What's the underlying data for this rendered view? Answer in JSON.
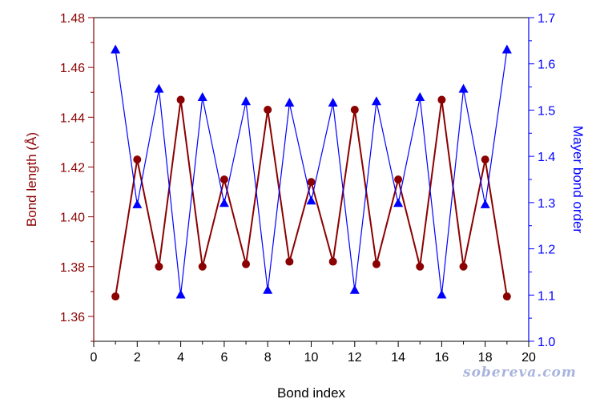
{
  "chart_data": {
    "type": "line",
    "xlabel": "Bond index",
    "ylabel_left": "Bond length (Å)",
    "ylabel_right": "Mayer bond order",
    "xlim": [
      0,
      20
    ],
    "ylim_left": [
      1.35,
      1.48
    ],
    "ylim_right": [
      1.0,
      1.7
    ],
    "x_ticks": [
      "0",
      "2",
      "4",
      "6",
      "8",
      "10",
      "12",
      "14",
      "16",
      "18",
      "20"
    ],
    "y_left_ticks": [
      "1.36",
      "1.38",
      "1.40",
      "1.42",
      "1.44",
      "1.46",
      "1.48"
    ],
    "y_right_ticks": [
      "1.0",
      "1.1",
      "1.2",
      "1.3",
      "1.4",
      "1.5",
      "1.6",
      "1.7"
    ],
    "x": [
      1,
      2,
      3,
      4,
      5,
      6,
      7,
      8,
      9,
      10,
      11,
      12,
      13,
      14,
      15,
      16,
      17,
      18,
      19
    ],
    "series": [
      {
        "axis": "left",
        "color": "#8b0000",
        "marker": "circle",
        "values": [
          1.368,
          1.423,
          1.38,
          1.447,
          1.38,
          1.415,
          1.381,
          1.443,
          1.382,
          1.414,
          1.382,
          1.443,
          1.381,
          1.415,
          1.38,
          1.447,
          1.38,
          1.423,
          1.368
        ]
      },
      {
        "axis": "right",
        "color": "#0000ff",
        "marker": "triangle",
        "values": [
          1.63,
          1.295,
          1.545,
          1.1,
          1.527,
          1.298,
          1.518,
          1.11,
          1.515,
          1.303,
          1.515,
          1.11,
          1.518,
          1.298,
          1.527,
          1.1,
          1.545,
          1.295,
          1.63
        ]
      }
    ],
    "grid": false,
    "legend": "none"
  },
  "watermark": "sobereva.com",
  "colors": {
    "left_axis": "#8b0000",
    "right_axis": "#0000ff",
    "bottom_axis": "#000000"
  }
}
